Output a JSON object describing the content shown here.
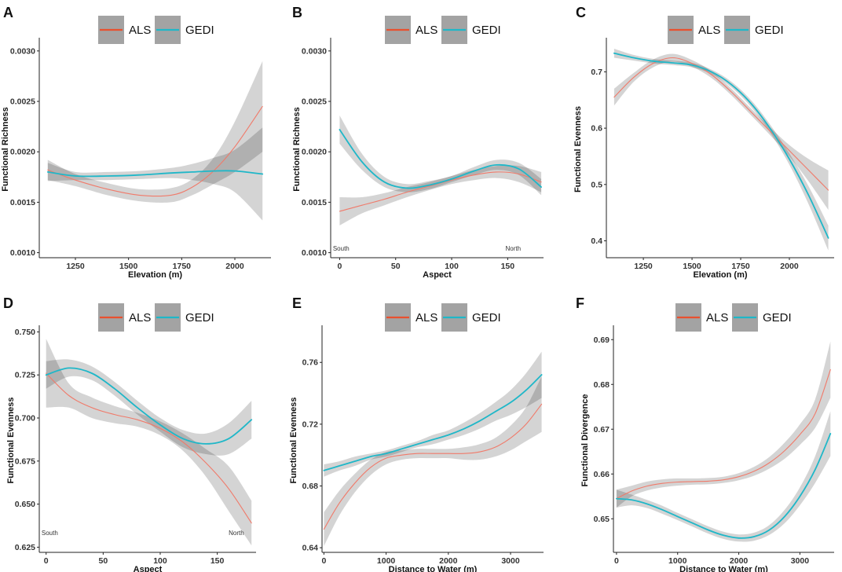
{
  "figure": {
    "legend": {
      "als": "ALS",
      "gedi": "GEDI"
    },
    "colors": {
      "als": "#f07a6a",
      "als_legend": "#e8512f",
      "gedi": "#1fb7c8",
      "ribbon": "#cfcfcf",
      "legend_box": "#a3a3a3"
    }
  },
  "chart_data": [
    {
      "panel": "A",
      "type": "line",
      "title": "",
      "xlabel": "Elevation (m)",
      "ylabel": "Functional Richness",
      "xlim": [
        1080,
        2170
      ],
      "ylim": [
        0.00095,
        0.0031
      ],
      "xticks": [
        1250,
        1500,
        1750,
        2000
      ],
      "xtick_labels": [
        "1250",
        "1500",
        "1750",
        "2000"
      ],
      "yticks": [
        0.001,
        0.0015,
        0.002,
        0.0025,
        0.003
      ],
      "ytick_labels": [
        "0.0010",
        "0.0015",
        "0.0020",
        "0.0025",
        "0.0030"
      ],
      "annotations": [],
      "series": [
        {
          "name": "ALS",
          "x": [
            1120,
            1250,
            1400,
            1550,
            1700,
            1800,
            1900,
            2000,
            2130
          ],
          "y": [
            0.00182,
            0.00172,
            0.00163,
            0.00157,
            0.00157,
            0.00165,
            0.00181,
            0.00205,
            0.00245
          ],
          "lower": [
            0.00172,
            0.00166,
            0.00157,
            0.00151,
            0.0015,
            0.00157,
            0.00168,
            0.0018,
            0.002
          ],
          "upper": [
            0.00192,
            0.00178,
            0.00169,
            0.00163,
            0.00164,
            0.00173,
            0.00194,
            0.0023,
            0.0029
          ]
        },
        {
          "name": "GEDI",
          "x": [
            1120,
            1250,
            1400,
            1550,
            1700,
            1800,
            1900,
            2000,
            2130
          ],
          "y": [
            0.0018,
            0.00176,
            0.00176,
            0.00177,
            0.00179,
            0.0018,
            0.00181,
            0.00181,
            0.00178
          ],
          "lower": [
            0.00171,
            0.00172,
            0.00172,
            0.00173,
            0.00174,
            0.00172,
            0.00168,
            0.0016,
            0.00132
          ],
          "upper": [
            0.00189,
            0.0018,
            0.0018,
            0.00181,
            0.00184,
            0.00188,
            0.00194,
            0.00202,
            0.00224
          ]
        }
      ]
    },
    {
      "panel": "B",
      "type": "line",
      "title": "",
      "xlabel": "Aspect",
      "ylabel": "Functional Richness",
      "xlim": [
        -8,
        182
      ],
      "ylim": [
        0.00095,
        0.0031
      ],
      "xticks": [
        0,
        50,
        100,
        150
      ],
      "xtick_labels": [
        "0",
        "50",
        "100",
        "150"
      ],
      "yticks": [
        0.001,
        0.0015,
        0.002,
        0.0025,
        0.003
      ],
      "ytick_labels": [
        "0.0010",
        "0.0015",
        "0.0020",
        "0.0025",
        "0.0030"
      ],
      "annotations": [
        {
          "text": "South",
          "x": -6,
          "y": 0.00102
        },
        {
          "text": "North",
          "x": 148,
          "y": 0.00102
        }
      ],
      "series": [
        {
          "name": "ALS",
          "x": [
            0,
            20,
            40,
            60,
            80,
            100,
            120,
            140,
            160,
            180
          ],
          "y": [
            0.00141,
            0.00147,
            0.00153,
            0.0016,
            0.00166,
            0.00172,
            0.00177,
            0.0018,
            0.00178,
            0.0017
          ],
          "lower": [
            0.00127,
            0.00139,
            0.00147,
            0.00155,
            0.00162,
            0.00168,
            0.00172,
            0.00174,
            0.0017,
            0.0016
          ],
          "upper": [
            0.00155,
            0.00155,
            0.00159,
            0.00165,
            0.0017,
            0.00176,
            0.00182,
            0.00186,
            0.00186,
            0.0018
          ]
        },
        {
          "name": "GEDI",
          "x": [
            0,
            20,
            40,
            60,
            80,
            100,
            120,
            140,
            160,
            180
          ],
          "y": [
            0.00222,
            0.0019,
            0.0017,
            0.00164,
            0.00167,
            0.00173,
            0.00181,
            0.00187,
            0.00183,
            0.00165
          ],
          "lower": [
            0.00208,
            0.00182,
            0.00165,
            0.0016,
            0.00163,
            0.0017,
            0.00177,
            0.00182,
            0.00177,
            0.00157
          ],
          "upper": [
            0.00236,
            0.00198,
            0.00175,
            0.00168,
            0.00171,
            0.00176,
            0.00185,
            0.00192,
            0.00189,
            0.00173
          ]
        }
      ]
    },
    {
      "panel": "C",
      "type": "line",
      "title": "",
      "xlabel": "Elevation (m)",
      "ylabel": "Functional Evenness",
      "xlim": [
        1060,
        2230
      ],
      "ylim": [
        0.37,
        0.755
      ],
      "xticks": [
        1250,
        1500,
        1750,
        2000
      ],
      "xtick_labels": [
        "1250",
        "1500",
        "1750",
        "2000"
      ],
      "yticks": [
        0.4,
        0.5,
        0.6,
        0.7
      ],
      "ytick_labels": [
        "0.4",
        "0.5",
        "0.6",
        "0.7"
      ],
      "annotations": [],
      "series": [
        {
          "name": "ALS",
          "x": [
            1100,
            1200,
            1300,
            1400,
            1500,
            1600,
            1700,
            1800,
            1900,
            2000,
            2100,
            2200
          ],
          "y": [
            0.655,
            0.69,
            0.715,
            0.725,
            0.715,
            0.695,
            0.665,
            0.63,
            0.595,
            0.56,
            0.525,
            0.49
          ],
          "lower": [
            0.64,
            0.682,
            0.708,
            0.718,
            0.709,
            0.689,
            0.659,
            0.624,
            0.588,
            0.55,
            0.505,
            0.455
          ],
          "upper": [
            0.67,
            0.698,
            0.722,
            0.732,
            0.721,
            0.701,
            0.671,
            0.636,
            0.602,
            0.57,
            0.545,
            0.525
          ]
        },
        {
          "name": "GEDI",
          "x": [
            1100,
            1200,
            1300,
            1400,
            1500,
            1600,
            1700,
            1800,
            1900,
            2000,
            2100,
            2200
          ],
          "y": [
            0.733,
            0.725,
            0.719,
            0.716,
            0.712,
            0.7,
            0.678,
            0.645,
            0.6,
            0.545,
            0.48,
            0.405
          ],
          "lower": [
            0.725,
            0.72,
            0.715,
            0.712,
            0.708,
            0.696,
            0.673,
            0.639,
            0.593,
            0.535,
            0.464,
            0.383
          ],
          "upper": [
            0.741,
            0.73,
            0.723,
            0.72,
            0.716,
            0.704,
            0.683,
            0.651,
            0.607,
            0.555,
            0.496,
            0.427
          ]
        }
      ]
    },
    {
      "panel": "D",
      "type": "line",
      "title": "",
      "xlabel": "Aspect",
      "ylabel": "Functional Evenness",
      "xlim": [
        -6,
        184
      ],
      "ylim": [
        0.622,
        0.752
      ],
      "xticks": [
        0,
        50,
        100,
        150
      ],
      "xtick_labels": [
        "0",
        "50",
        "100",
        "150"
      ],
      "yticks": [
        0.625,
        0.65,
        0.675,
        0.7,
        0.725,
        0.75
      ],
      "ytick_labels": [
        "0.625",
        "0.650",
        "0.675",
        "0.700",
        "0.725",
        "0.750"
      ],
      "annotations": [
        {
          "text": "South",
          "x": -4,
          "y": 0.632
        },
        {
          "text": "North",
          "x": 160,
          "y": 0.632
        }
      ],
      "series": [
        {
          "name": "ALS",
          "x": [
            0,
            20,
            40,
            60,
            80,
            100,
            120,
            140,
            160,
            180
          ],
          "y": [
            0.726,
            0.713,
            0.706,
            0.702,
            0.699,
            0.694,
            0.686,
            0.674,
            0.659,
            0.639
          ],
          "lower": [
            0.706,
            0.706,
            0.7,
            0.697,
            0.695,
            0.69,
            0.681,
            0.666,
            0.646,
            0.626
          ],
          "upper": [
            0.746,
            0.72,
            0.712,
            0.707,
            0.703,
            0.698,
            0.691,
            0.682,
            0.672,
            0.652
          ]
        },
        {
          "name": "GEDI",
          "x": [
            0,
            20,
            40,
            60,
            80,
            100,
            120,
            140,
            160,
            180
          ],
          "y": [
            0.725,
            0.729,
            0.726,
            0.717,
            0.706,
            0.696,
            0.688,
            0.685,
            0.688,
            0.699
          ],
          "lower": [
            0.717,
            0.724,
            0.722,
            0.713,
            0.702,
            0.692,
            0.683,
            0.679,
            0.679,
            0.688
          ],
          "upper": [
            0.733,
            0.734,
            0.73,
            0.721,
            0.71,
            0.7,
            0.693,
            0.691,
            0.697,
            0.71
          ]
        }
      ]
    },
    {
      "panel": "E",
      "type": "line",
      "title": "",
      "xlabel": "Distance to Water (m)",
      "ylabel": "Functional Evenness",
      "xlim": [
        -30,
        3530
      ],
      "ylim": [
        0.637,
        0.782
      ],
      "xticks": [
        0,
        1000,
        2000,
        3000
      ],
      "xtick_labels": [
        "0",
        "1000",
        "2000",
        "3000"
      ],
      "yticks": [
        0.64,
        0.68,
        0.72,
        0.76
      ],
      "ytick_labels": [
        "0.64",
        "0.68",
        "0.72",
        "0.76"
      ],
      "annotations": [],
      "series": [
        {
          "name": "ALS",
          "x": [
            0,
            250,
            500,
            750,
            1000,
            1250,
            1500,
            1750,
            2000,
            2250,
            2500,
            2750,
            3000,
            3250,
            3500
          ],
          "y": [
            0.652,
            0.669,
            0.682,
            0.692,
            0.698,
            0.7,
            0.701,
            0.701,
            0.701,
            0.701,
            0.702,
            0.705,
            0.711,
            0.72,
            0.733
          ],
          "lower": [
            0.641,
            0.661,
            0.676,
            0.687,
            0.694,
            0.697,
            0.698,
            0.698,
            0.698,
            0.697,
            0.697,
            0.699,
            0.703,
            0.709,
            0.715
          ],
          "upper": [
            0.663,
            0.677,
            0.688,
            0.697,
            0.702,
            0.703,
            0.704,
            0.704,
            0.704,
            0.705,
            0.707,
            0.711,
            0.719,
            0.731,
            0.751
          ]
        },
        {
          "name": "GEDI",
          "x": [
            0,
            250,
            500,
            750,
            1000,
            1250,
            1500,
            1750,
            2000,
            2250,
            2500,
            2750,
            3000,
            3250,
            3500
          ],
          "y": [
            0.69,
            0.693,
            0.696,
            0.699,
            0.701,
            0.704,
            0.707,
            0.71,
            0.713,
            0.717,
            0.722,
            0.728,
            0.734,
            0.742,
            0.752
          ],
          "lower": [
            0.686,
            0.69,
            0.693,
            0.697,
            0.699,
            0.702,
            0.705,
            0.707,
            0.71,
            0.713,
            0.717,
            0.722,
            0.726,
            0.731,
            0.737
          ],
          "upper": [
            0.694,
            0.696,
            0.699,
            0.701,
            0.703,
            0.706,
            0.709,
            0.713,
            0.716,
            0.721,
            0.727,
            0.734,
            0.742,
            0.753,
            0.767
          ]
        }
      ]
    },
    {
      "panel": "F",
      "type": "line",
      "title": "",
      "xlabel": "Distance to Water (m)",
      "ylabel": "Functional Divergence",
      "xlim": [
        -50,
        3560
      ],
      "ylim": [
        0.6425,
        0.6925
      ],
      "xticks": [
        0,
        1000,
        2000,
        3000
      ],
      "xtick_labels": [
        "0",
        "1000",
        "2000",
        "3000"
      ],
      "yticks": [
        0.65,
        0.66,
        0.67,
        0.68,
        0.69
      ],
      "ytick_labels": [
        "0.65",
        "0.66",
        "0.67",
        "0.68",
        "0.69"
      ],
      "annotations": [],
      "series": [
        {
          "name": "ALS",
          "x": [
            0,
            250,
            500,
            750,
            1000,
            1250,
            1500,
            1750,
            2000,
            2250,
            2500,
            2750,
            3000,
            3250,
            3500
          ],
          "y": [
            0.6545,
            0.6562,
            0.6573,
            0.6579,
            0.6582,
            0.6583,
            0.6584,
            0.6587,
            0.6594,
            0.6606,
            0.6625,
            0.6652,
            0.6688,
            0.6735,
            0.6833
          ],
          "lower": [
            0.6525,
            0.655,
            0.6563,
            0.657,
            0.6574,
            0.6576,
            0.6577,
            0.658,
            0.6586,
            0.6596,
            0.6612,
            0.6634,
            0.6665,
            0.6703,
            0.677
          ],
          "upper": [
            0.6565,
            0.6574,
            0.6583,
            0.6588,
            0.659,
            0.659,
            0.6591,
            0.6594,
            0.6602,
            0.6616,
            0.6638,
            0.667,
            0.6711,
            0.6767,
            0.6896
          ]
        },
        {
          "name": "GEDI",
          "x": [
            0,
            250,
            500,
            750,
            1000,
            1250,
            1500,
            1750,
            2000,
            2250,
            2500,
            2750,
            3000,
            3250,
            3500
          ],
          "y": [
            0.6545,
            0.6542,
            0.6533,
            0.652,
            0.6505,
            0.649,
            0.6475,
            0.6463,
            0.6457,
            0.646,
            0.6475,
            0.6505,
            0.655,
            0.661,
            0.669
          ],
          "lower": [
            0.6525,
            0.653,
            0.6524,
            0.6511,
            0.6497,
            0.6482,
            0.6467,
            0.6455,
            0.6449,
            0.6451,
            0.6464,
            0.649,
            0.653,
            0.658,
            0.664
          ],
          "upper": [
            0.6565,
            0.6554,
            0.6542,
            0.6529,
            0.6513,
            0.6498,
            0.6483,
            0.6471,
            0.6465,
            0.6469,
            0.6486,
            0.652,
            0.657,
            0.664,
            0.674
          ]
        }
      ]
    }
  ]
}
